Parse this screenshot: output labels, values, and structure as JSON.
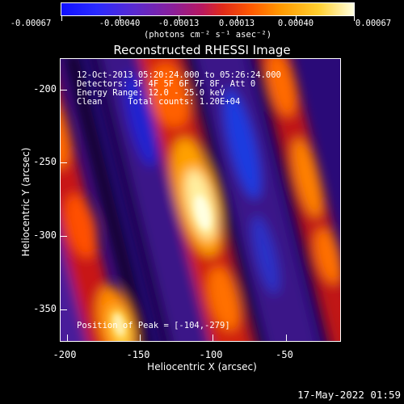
{
  "colorbar": {
    "tick_labels": [
      "-0.00067",
      "-0.00040",
      "-0.00013",
      "0.00013",
      "0.00040",
      "0.00067"
    ],
    "units": "(photons cm⁻² s⁻¹ asec⁻²)"
  },
  "title": "Reconstructed RHESSI Image",
  "axes": {
    "ylabel": "Heliocentric Y (arcsec)",
    "xlabel": "Heliocentric X (arcsec)",
    "y_ticks": [
      "-200",
      "-250",
      "-300",
      "-350"
    ],
    "x_ticks": [
      "-200",
      "-150",
      "-100",
      "-50"
    ]
  },
  "annotations": {
    "line1": "12-Oct-2013 05:20:24.000 to 05:26:24.000",
    "line2": "Detectors: 3F 4F 5F 6F 7F 8F, Att 0",
    "line3": "Energy Range: 12.0 - 25.0 keV",
    "line4": "Clean     Total counts: 1.20E+04",
    "peak": "Position of Peak = [-104,-279]"
  },
  "datestamp": "17-May-2022 01:59"
}
